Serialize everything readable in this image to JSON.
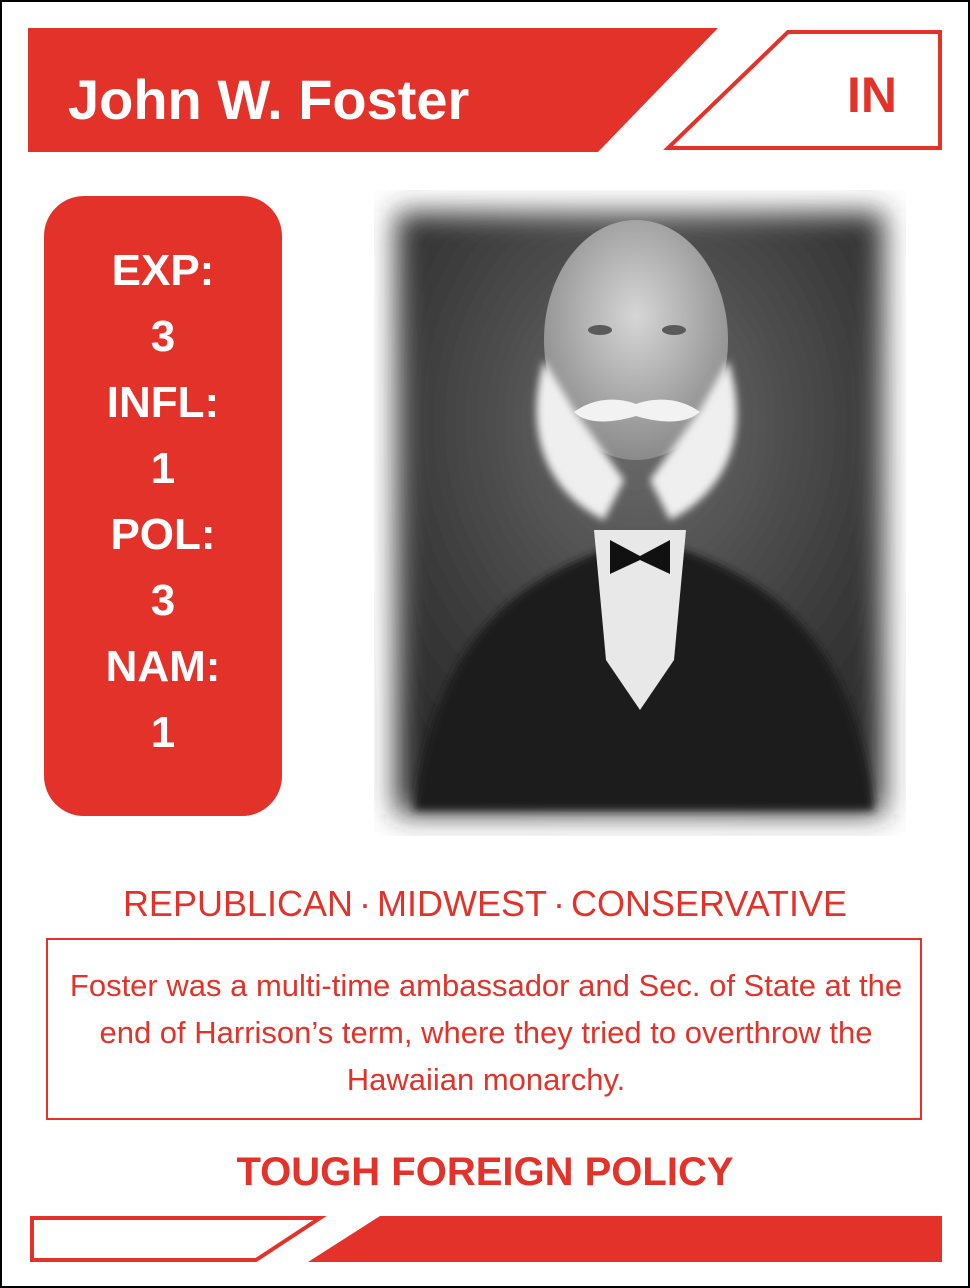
{
  "card": {
    "name": "John W. Foster",
    "state": "IN",
    "stats": [
      {
        "label": "EXP:",
        "value": "3"
      },
      {
        "label": "INFL:",
        "value": "1"
      },
      {
        "label": "POL:",
        "value": "3"
      },
      {
        "label": "NAM:",
        "value": "1"
      }
    ],
    "tags": [
      "REPUBLICAN",
      "MIDWEST",
      "CONSERVATIVE"
    ],
    "tag_separator": "·",
    "bio": "Foster was a multi-time ambassador and Sec. of State at the end of Harrison’s term, where they tried to overthrow the Hawaiian monarchy.",
    "ability": "TOUGH FOREIGN POLICY"
  },
  "colors": {
    "accent": "#e3322a",
    "background": "#ffffff",
    "border": "#000000"
  }
}
